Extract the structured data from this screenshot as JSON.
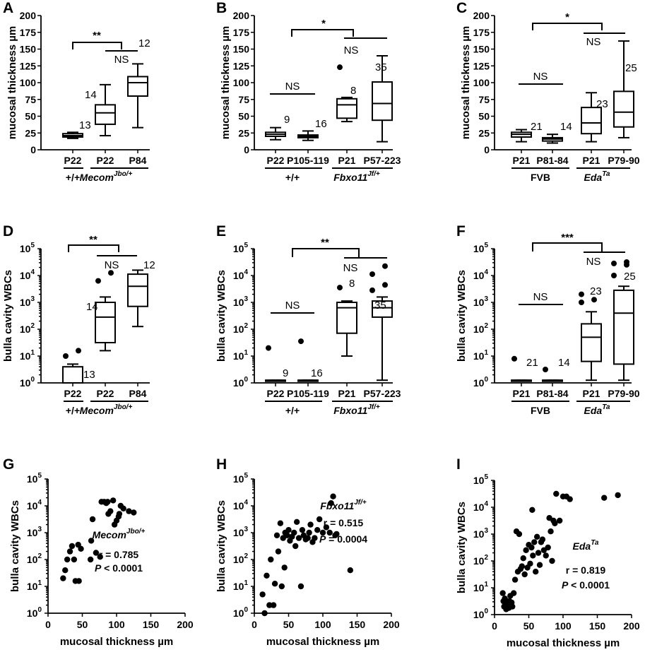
{
  "chart_data": [
    {
      "panel": "A",
      "type": "box",
      "ylabel": "mucosal thickness µm",
      "yscale": "linear",
      "ylim": [
        0,
        200
      ],
      "yticks": [
        "0",
        "25",
        "50",
        "75",
        "100",
        "125",
        "150",
        "175",
        "200"
      ],
      "categories": [
        "P22",
        "P22",
        "P84"
      ],
      "groups": [
        "+/+",
        "Mecom",
        "Jbo/+"
      ],
      "boxes": [
        {
          "label": "P22",
          "min": 17,
          "q1": 19,
          "median": 21,
          "q3": 24,
          "max": 26,
          "n": "13",
          "outliers": []
        },
        {
          "label": "P22",
          "min": 21,
          "q1": 38,
          "median": 55,
          "q3": 67,
          "max": 97,
          "n": "14",
          "outliers": []
        },
        {
          "label": "P84",
          "min": 33,
          "q1": 80,
          "median": 100,
          "q3": 109,
          "max": 128,
          "n": "12",
          "outliers": []
        }
      ],
      "annotations": [
        "**",
        "NS"
      ]
    },
    {
      "panel": "B",
      "type": "box",
      "ylabel": "mucosal thickness µm",
      "yscale": "linear",
      "ylim": [
        0,
        200
      ],
      "yticks": [
        "0",
        "25",
        "50",
        "75",
        "100",
        "125",
        "150",
        "175",
        "200"
      ],
      "categories": [
        "P22",
        "P105-119",
        "P21",
        "P57-223"
      ],
      "groups": [
        "+/+",
        "Fbxo11",
        "Jf/+"
      ],
      "boxes": [
        {
          "label": "P22",
          "min": 15,
          "q1": 20,
          "median": 23,
          "q3": 26,
          "max": 33,
          "n": "9",
          "outliers": []
        },
        {
          "label": "P105-119",
          "min": 14,
          "q1": 18,
          "median": 20,
          "q3": 22,
          "max": 28,
          "n": "16",
          "outliers": []
        },
        {
          "label": "P21",
          "min": 42,
          "q1": 47,
          "median": 67,
          "q3": 76,
          "max": 78,
          "n": "8",
          "outliers": [
            123
          ]
        },
        {
          "label": "P57-223",
          "min": 12,
          "q1": 44,
          "median": 69,
          "q3": 101,
          "max": 140,
          "n": "35",
          "outliers": []
        }
      ],
      "annotations": [
        "*",
        "NS",
        "NS"
      ]
    },
    {
      "panel": "C",
      "type": "box",
      "ylabel": "mucosal thickness µm",
      "yscale": "linear",
      "ylim": [
        0,
        200
      ],
      "yticks": [
        "0",
        "25",
        "50",
        "75",
        "100",
        "125",
        "150",
        "175",
        "200"
      ],
      "categories": [
        "P21",
        "P81-84",
        "P21",
        "P79-90"
      ],
      "groups": [
        "FVB",
        "Eda",
        "Ta"
      ],
      "boxes": [
        {
          "label": "P21",
          "min": 12,
          "q1": 19,
          "median": 23,
          "q3": 26,
          "max": 30,
          "n": "21",
          "outliers": []
        },
        {
          "label": "P81-84",
          "min": 10,
          "q1": 13,
          "median": 16,
          "q3": 18,
          "max": 23,
          "n": "14",
          "outliers": []
        },
        {
          "label": "P21",
          "min": 12,
          "q1": 24,
          "median": 40,
          "q3": 63,
          "max": 85,
          "n": "23",
          "outliers": []
        },
        {
          "label": "P79-90",
          "min": 18,
          "q1": 34,
          "median": 56,
          "q3": 87,
          "max": 162,
          "n": "25",
          "outliers": []
        }
      ],
      "annotations": [
        "*",
        "NS",
        "NS"
      ]
    },
    {
      "panel": "D",
      "type": "box",
      "ylabel": "bulla cavity WBCs",
      "yscale": "log",
      "ylim": [
        0,
        5
      ],
      "yticks": [
        "10",
        "10",
        "10",
        "10",
        "10",
        "10"
      ],
      "yexp": [
        "0",
        "1",
        "2",
        "3",
        "4",
        "5"
      ],
      "categories": [
        "P22",
        "P22",
        "P84"
      ],
      "groups": [
        "+/+",
        "Mecom",
        "Jbo/+"
      ],
      "boxes": [
        {
          "label": "P22",
          "min": 0,
          "q1": 0,
          "median": 0,
          "q3": 0.6,
          "max": 0.7,
          "n": "13",
          "outliers": [
            1.0,
            1.2
          ]
        },
        {
          "label": "P22",
          "min": 1.2,
          "q1": 1.5,
          "median": 2.45,
          "q3": 3.0,
          "max": 3.2,
          "n": "14",
          "outliers": [
            3.8,
            4.1
          ]
        },
        {
          "label": "P84",
          "min": 2.1,
          "q1": 2.85,
          "median": 3.6,
          "q3": 4.05,
          "max": 4.2,
          "n": "12",
          "outliers": []
        }
      ],
      "annotations": [
        "**",
        "NS"
      ]
    },
    {
      "panel": "E",
      "type": "box",
      "ylabel": "bulla cavity WBCs",
      "yscale": "log",
      "ylim": [
        0,
        5
      ],
      "yticks": [
        "10",
        "10",
        "10",
        "10",
        "10",
        "10"
      ],
      "yexp": [
        "0",
        "1",
        "2",
        "3",
        "4",
        "5"
      ],
      "categories": [
        "P22",
        "P105-119",
        "P21",
        "P57-223"
      ],
      "groups": [
        "+/+",
        "Fbxo11",
        "Jf/+"
      ],
      "boxes": [
        {
          "label": "P22",
          "min": 0.1,
          "q1": 0.1,
          "median": 0.1,
          "q3": 0.1,
          "max": 0.1,
          "n": "9",
          "outliers": [
            1.3
          ]
        },
        {
          "label": "P105-119",
          "min": 0.1,
          "q1": 0.1,
          "median": 0.1,
          "q3": 0.1,
          "max": 0.1,
          "n": "16",
          "outliers": [
            1.55
          ]
        },
        {
          "label": "P21",
          "min": 1.0,
          "q1": 1.85,
          "median": 2.8,
          "q3": 3.0,
          "max": 3.05,
          "n": "8",
          "outliers": [
            3.55
          ]
        },
        {
          "label": "P57-223",
          "min": 0.1,
          "q1": 2.45,
          "median": 2.8,
          "q3": 3.05,
          "max": 3.2,
          "n": "35",
          "outliers": [
            3.45,
            3.65,
            4.05,
            4.35
          ]
        }
      ],
      "annotations": [
        "**",
        "NS",
        "NS"
      ]
    },
    {
      "panel": "F",
      "type": "box",
      "ylabel": "bulla cavity WBCs",
      "yscale": "log",
      "ylim": [
        0,
        5
      ],
      "yticks": [
        "10",
        "10",
        "10",
        "10",
        "10",
        "10"
      ],
      "yexp": [
        "0",
        "1",
        "2",
        "3",
        "4",
        "5"
      ],
      "categories": [
        "P21",
        "P81-84",
        "P21",
        "P79-90"
      ],
      "groups": [
        "FVB",
        "Eda",
        "Ta"
      ],
      "boxes": [
        {
          "label": "P21",
          "min": 0.1,
          "q1": 0.1,
          "median": 0.1,
          "q3": 0.1,
          "max": 0.1,
          "n": "21",
          "outliers": [
            0.9
          ]
        },
        {
          "label": "P81-84",
          "min": 0.1,
          "q1": 0.1,
          "median": 0.1,
          "q3": 0.1,
          "max": 0.1,
          "n": "14",
          "outliers": [
            0.5
          ]
        },
        {
          "label": "P21",
          "min": 0.1,
          "q1": 0.8,
          "median": 1.7,
          "q3": 2.2,
          "max": 2.65,
          "n": "23",
          "outliers": [
            3.0,
            3.1,
            3.3
          ]
        },
        {
          "label": "P79-90",
          "min": 0.1,
          "q1": 0.7,
          "median": 2.6,
          "q3": 3.45,
          "max": 3.6,
          "n": "25",
          "outliers": [
            4.0,
            4.4,
            4.45,
            4.5
          ]
        }
      ],
      "annotations": [
        "***",
        "NS",
        "NS"
      ]
    },
    {
      "panel": "G",
      "type": "scatter",
      "ylabel": "bulla cavity WBCs",
      "xlabel": "mucosal thickness µm",
      "yscale": "log",
      "xlim": [
        0,
        200
      ],
      "ylim": [
        0,
        5
      ],
      "xticks": [
        "0",
        "50",
        "100",
        "150",
        "200"
      ],
      "yticks": [
        "10",
        "10",
        "10",
        "10",
        "10",
        "10"
      ],
      "yexp": [
        "0",
        "1",
        "2",
        "3",
        "4",
        "5"
      ],
      "strain": "Mecom",
      "strain_sup": "Jbo/+",
      "r_text": "r =  0.785",
      "p_label": "P",
      "p_text": " < 0.0001",
      "x": [
        22,
        25,
        28,
        32,
        35,
        38,
        40,
        44,
        45,
        48,
        62,
        63,
        65,
        70,
        76,
        78,
        82,
        85,
        87,
        88,
        91,
        95,
        97,
        100,
        103,
        104,
        106,
        110,
        118,
        125
      ],
      "y": [
        1.3,
        1.6,
        2.0,
        2.3,
        2.5,
        2.0,
        1.2,
        2.55,
        1.2,
        2.4,
        2.0,
        2.7,
        3.5,
        2.25,
        2.1,
        4.15,
        4.15,
        4.1,
        4.15,
        3.7,
        3.8,
        4.2,
        3.3,
        3.45,
        3.6,
        3.7,
        4.0,
        3.9,
        3.8,
        3.75
      ]
    },
    {
      "panel": "H",
      "type": "scatter",
      "ylabel": "bulla cavity WBCs",
      "xlabel": "mucosal thickness µm",
      "yscale": "log",
      "xlim": [
        0,
        200
      ],
      "ylim": [
        0,
        5
      ],
      "xticks": [
        "0",
        "50",
        "100",
        "150",
        "200"
      ],
      "yticks": [
        "10",
        "10",
        "10",
        "10",
        "10",
        "10"
      ],
      "yexp": [
        "0",
        "1",
        "2",
        "3",
        "4",
        "5"
      ],
      "strain": "Fbxo11",
      "strain_sup": "Jf/+",
      "r_text": "r = 0.515",
      "p_label": "P",
      "p_text": " = 0.0004",
      "x": [
        12,
        15,
        18,
        22,
        24,
        28,
        30,
        33,
        35,
        38,
        40,
        42,
        44,
        45,
        48,
        50,
        52,
        55,
        58,
        60,
        62,
        65,
        68,
        70,
        72,
        75,
        78,
        80,
        82,
        85,
        88,
        92,
        95,
        100,
        105,
        110,
        112,
        115,
        118,
        120,
        140
      ],
      "y": [
        0.7,
        0,
        1.4,
        0.3,
        2.0,
        0.3,
        1.1,
        2.9,
        2.3,
        3.35,
        1.0,
        2.8,
        1.7,
        3.0,
        2.9,
        3.1,
        2.7,
        2.85,
        3.0,
        2.5,
        3.4,
        2.8,
        1.0,
        3.1,
        2.9,
        2.75,
        2.8,
        3.0,
        3.3,
        2.65,
        2.8,
        3.1,
        3.5,
        3.0,
        3.2,
        3.0,
        4.1,
        4.35,
        2.9,
        2.95,
        1.6
      ]
    },
    {
      "panel": "I",
      "type": "scatter",
      "ylabel": "bulla cavity WBCs",
      "xlabel": "mucosal thickness µm",
      "yscale": "log",
      "xlim": [
        0,
        200
      ],
      "ylim": [
        0,
        5
      ],
      "xticks": [
        "0",
        "50",
        "100",
        "150",
        "200"
      ],
      "yticks": [
        "10",
        "10",
        "10",
        "10",
        "10",
        "10"
      ],
      "yexp": [
        "0",
        "1",
        "2",
        "3",
        "4",
        "5"
      ],
      "strain": "Eda",
      "strain_sup": "Ta",
      "r_text": "r = 0.819",
      "p_label": "P",
      "p_text": " < 0.0001",
      "x": [
        12,
        13,
        14,
        15,
        16,
        17,
        18,
        19,
        20,
        21,
        22,
        23,
        24,
        25,
        26,
        28,
        30,
        32,
        34,
        36,
        38,
        40,
        42,
        44,
        46,
        48,
        50,
        52,
        54,
        55,
        56,
        58,
        60,
        62,
        64,
        66,
        68,
        70,
        72,
        75,
        78,
        80,
        82,
        84,
        86,
        88,
        90,
        95,
        100,
        105,
        110,
        160,
        180
      ],
      "y": [
        0.8,
        0.5,
        0.3,
        0.6,
        0.4,
        0.2,
        0.5,
        0.3,
        0.45,
        0.25,
        0.5,
        0.7,
        0.35,
        0.45,
        0.3,
        0.8,
        1.3,
        3.1,
        1.6,
        3.0,
        1.7,
        1.8,
        2.1,
        1.5,
        2.4,
        1.75,
        2.6,
        1.9,
        2.5,
        3.9,
        2.2,
        2.7,
        1.6,
        2.9,
        2.3,
        1.85,
        2.7,
        2.8,
        2.4,
        2.2,
        2.5,
        3.6,
        3.1,
        2.0,
        3.5,
        3.4,
        4.5,
        3.5,
        4.4,
        4.4,
        4.3,
        4.35,
        4.45
      ]
    }
  ]
}
